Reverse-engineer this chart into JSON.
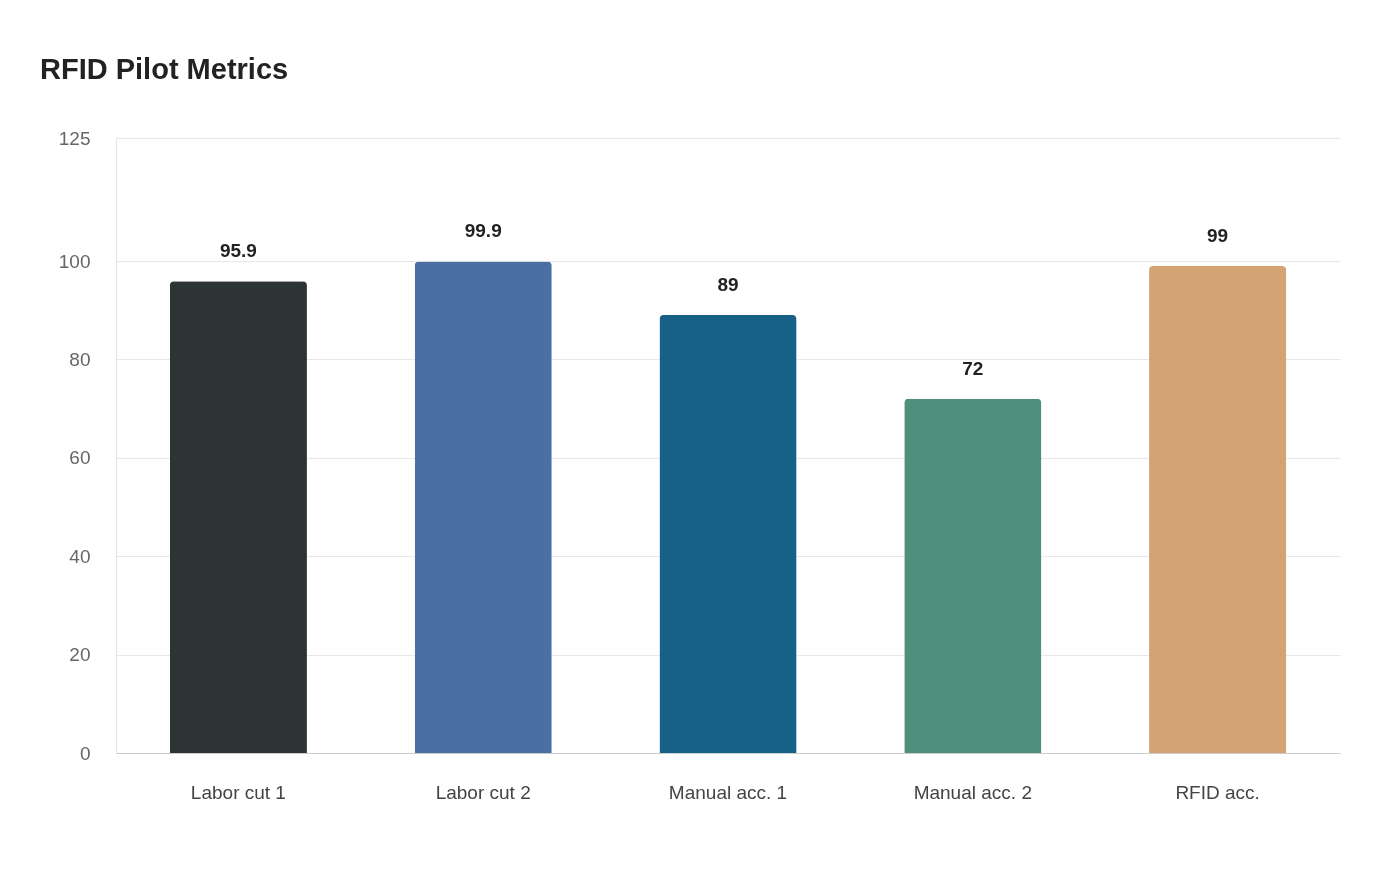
{
  "chart_data": {
    "type": "bar",
    "title": "RFID Pilot Metrics",
    "categories": [
      "Labor cut 1",
      "Labor cut 2",
      "Manual acc. 1",
      "Manual acc. 2",
      "RFID acc."
    ],
    "values": [
      95.9,
      99.9,
      89,
      72,
      99
    ],
    "colors": [
      "#2d3436",
      "#4a6fa5",
      "#176086",
      "#4e8f7b",
      "#d4a373"
    ],
    "ylim": [
      0,
      125
    ],
    "yticks": [
      0,
      20,
      40,
      60,
      80,
      100,
      125
    ],
    "grid": "y",
    "data_labels": true
  }
}
